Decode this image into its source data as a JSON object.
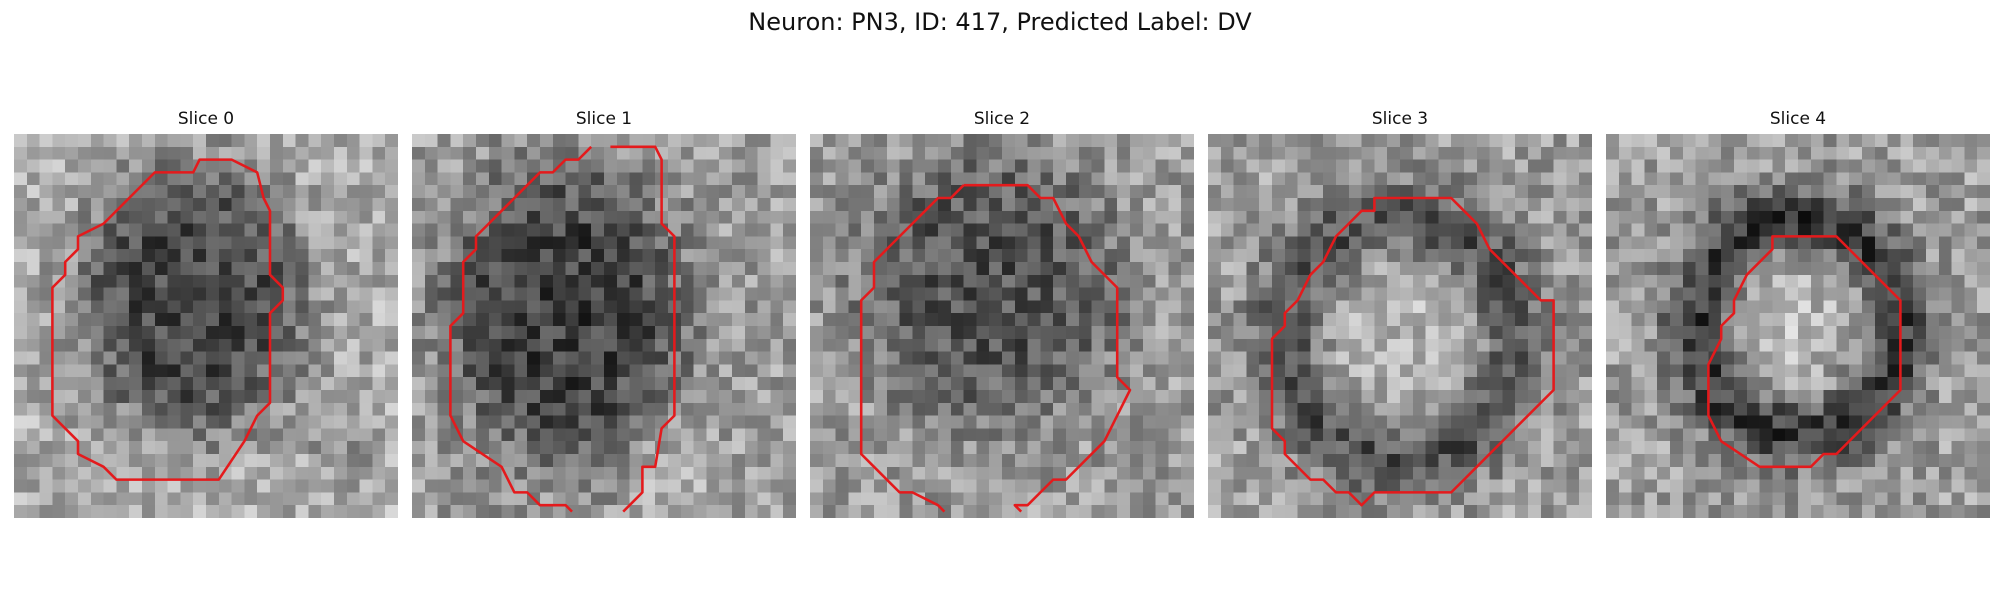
{
  "figure": {
    "title": "Neuron: PN3, ID: 417, Predicted Label: DV"
  },
  "panels": [
    {
      "title": "Slice 0"
    },
    {
      "title": "Slice 1"
    },
    {
      "title": "Slice 2"
    },
    {
      "title": "Slice 3"
    },
    {
      "title": "Slice 4"
    }
  ],
  "colors": {
    "contour": "#e41a1c",
    "background": "#ffffff"
  }
}
